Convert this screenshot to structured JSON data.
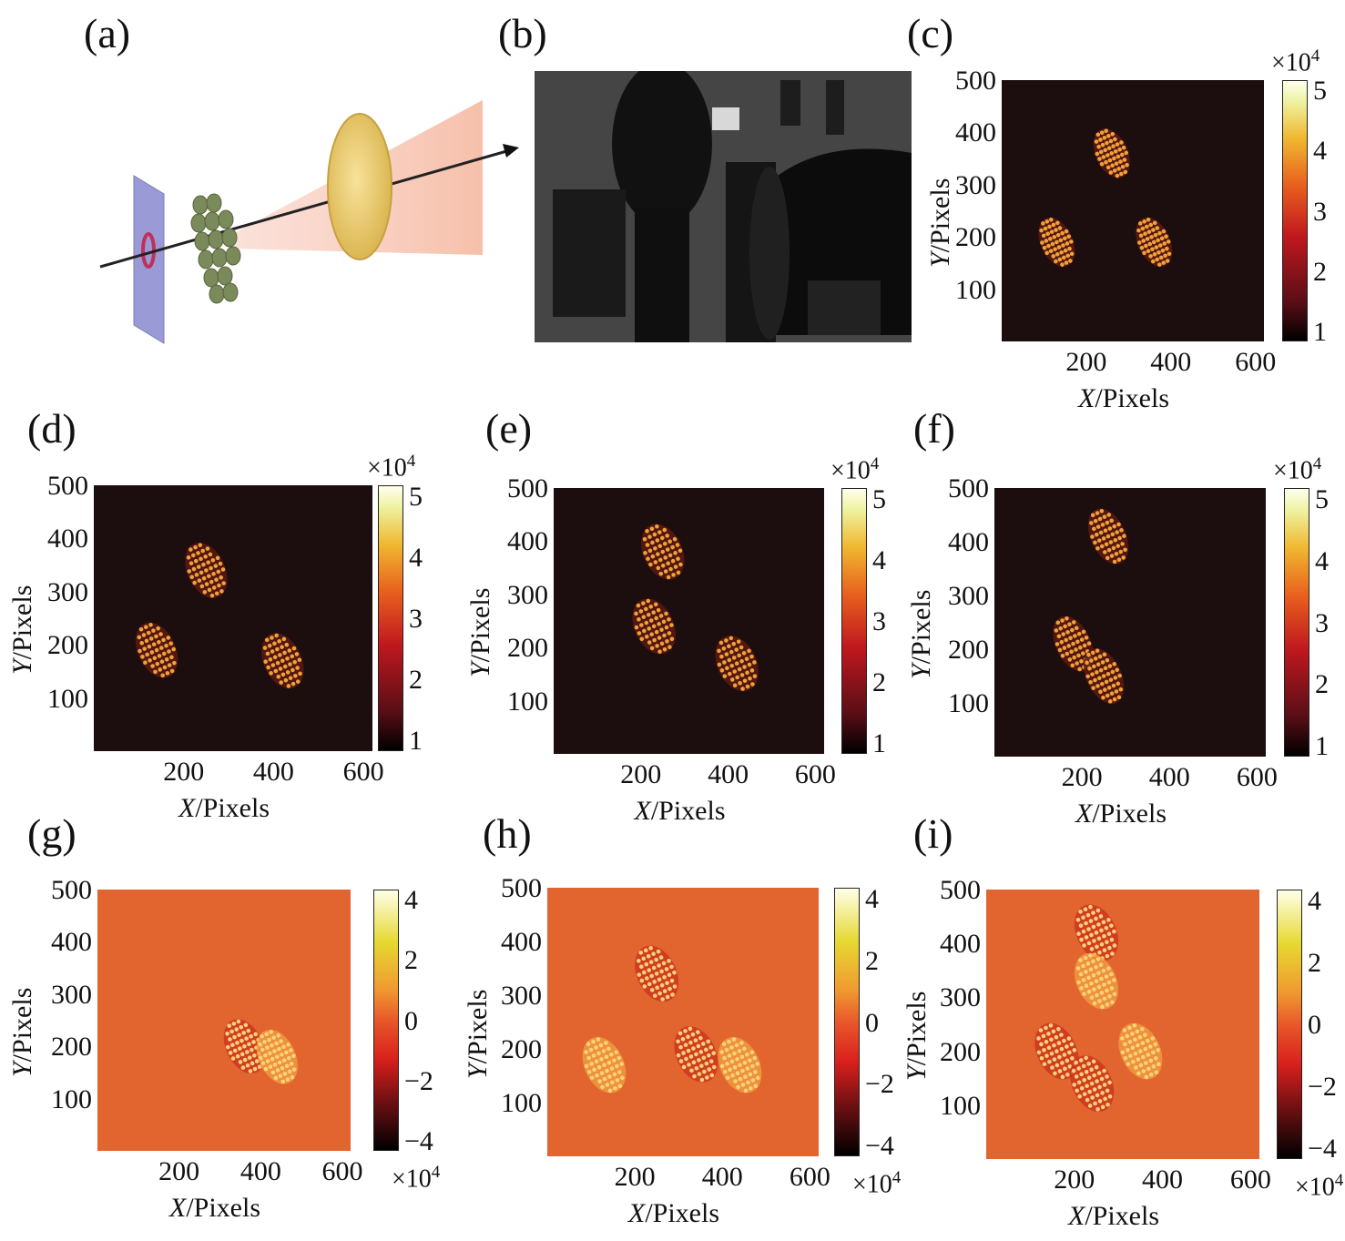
{
  "labels": {
    "a": "(a)",
    "b": "(b)",
    "c": "(c)",
    "d": "(d)",
    "e": "(e)",
    "f": "(f)",
    "g": "(g)",
    "h": "(h)",
    "i": "(i)"
  },
  "axes": {
    "xlabel_italic": "X",
    "ylabel_italic": "Y",
    "label_rest": "/Pixels",
    "xticks": [
      "200",
      "400",
      "600"
    ],
    "yticks": [
      "500",
      "400",
      "300",
      "200",
      "100"
    ]
  },
  "colorbars": {
    "intensity_ticks": [
      "5",
      "4",
      "3",
      "2",
      "1"
    ],
    "diff_ticks": [
      "4",
      "2",
      "0",
      "−2",
      "−4"
    ],
    "multiplier": "×10",
    "exponent": "4"
  },
  "colors": {
    "dark_bg": "#1c0d0e",
    "orange_bg": "#e2642e",
    "spot": "#f2a03a"
  },
  "chart_data": [
    {
      "panel": "c",
      "type": "heatmap",
      "xlabel": "X/Pixels",
      "ylabel": "Y/Pixels",
      "xlim": [
        0,
        620
      ],
      "ylim": [
        0,
        500
      ],
      "colorbar": [
        1,
        5
      ],
      "scale": "×10^4",
      "spots": [
        [
          260,
          360
        ],
        [
          130,
          190
        ],
        [
          360,
          190
        ]
      ],
      "spot_radius": [
        38,
        50
      ]
    },
    {
      "panel": "d",
      "type": "heatmap",
      "xlabel": "X/Pixels",
      "ylabel": "Y/Pixels",
      "xlim": [
        0,
        620
      ],
      "ylim": [
        0,
        500
      ],
      "colorbar": [
        1,
        5
      ],
      "scale": "×10^4",
      "spots": [
        [
          250,
          340
        ],
        [
          140,
          190
        ],
        [
          420,
          170
        ]
      ],
      "spot_radius": [
        42,
        55
      ]
    },
    {
      "panel": "e",
      "type": "heatmap",
      "xlabel": "X/Pixels",
      "ylabel": "Y/Pixels",
      "xlim": [
        0,
        620
      ],
      "ylim": [
        0,
        500
      ],
      "colorbar": [
        1,
        5
      ],
      "scale": "×10^4",
      "spots": [
        [
          250,
          380
        ],
        [
          230,
          240
        ],
        [
          420,
          170
        ]
      ],
      "spot_radius": [
        45,
        55
      ]
    },
    {
      "panel": "f",
      "type": "heatmap",
      "xlabel": "X/Pixels",
      "ylabel": "Y/Pixels",
      "xlim": [
        0,
        620
      ],
      "ylim": [
        0,
        500
      ],
      "colorbar": [
        1,
        5
      ],
      "scale": "×10^4",
      "spots": [
        [
          260,
          410
        ],
        [
          180,
          210
        ],
        [
          250,
          150
        ]
      ],
      "spot_radius": [
        40,
        55
      ]
    },
    {
      "panel": "g",
      "type": "heatmap",
      "xlabel": "X/Pixels",
      "ylabel": "Y/Pixels",
      "xlim": [
        0,
        620
      ],
      "ylim": [
        0,
        500
      ],
      "colorbar": [
        -4,
        4
      ],
      "scale": "×10^4",
      "spots": [
        [
          360,
          200
        ],
        [
          440,
          180
        ]
      ],
      "spot_radius": [
        45,
        55
      ]
    },
    {
      "panel": "h",
      "type": "heatmap",
      "xlabel": "X/Pixels",
      "ylabel": "Y/Pixels",
      "xlim": [
        0,
        620
      ],
      "ylim": [
        0,
        500
      ],
      "colorbar": [
        -4,
        4
      ],
      "scale": "×10^4",
      "spots": [
        [
          250,
          340
        ],
        [
          130,
          170
        ],
        [
          340,
          190
        ],
        [
          440,
          170
        ]
      ],
      "spot_radius": [
        45,
        55
      ]
    },
    {
      "panel": "i",
      "type": "heatmap",
      "xlabel": "X/Pixels",
      "ylabel": "Y/Pixels",
      "xlim": [
        0,
        620
      ],
      "ylim": [
        0,
        500
      ],
      "colorbar": [
        -4,
        4
      ],
      "scale": "×10^4",
      "spots": [
        [
          250,
          420
        ],
        [
          250,
          330
        ],
        [
          160,
          200
        ],
        [
          350,
          200
        ],
        [
          240,
          140
        ]
      ],
      "spot_radius": [
        45,
        55
      ]
    }
  ]
}
